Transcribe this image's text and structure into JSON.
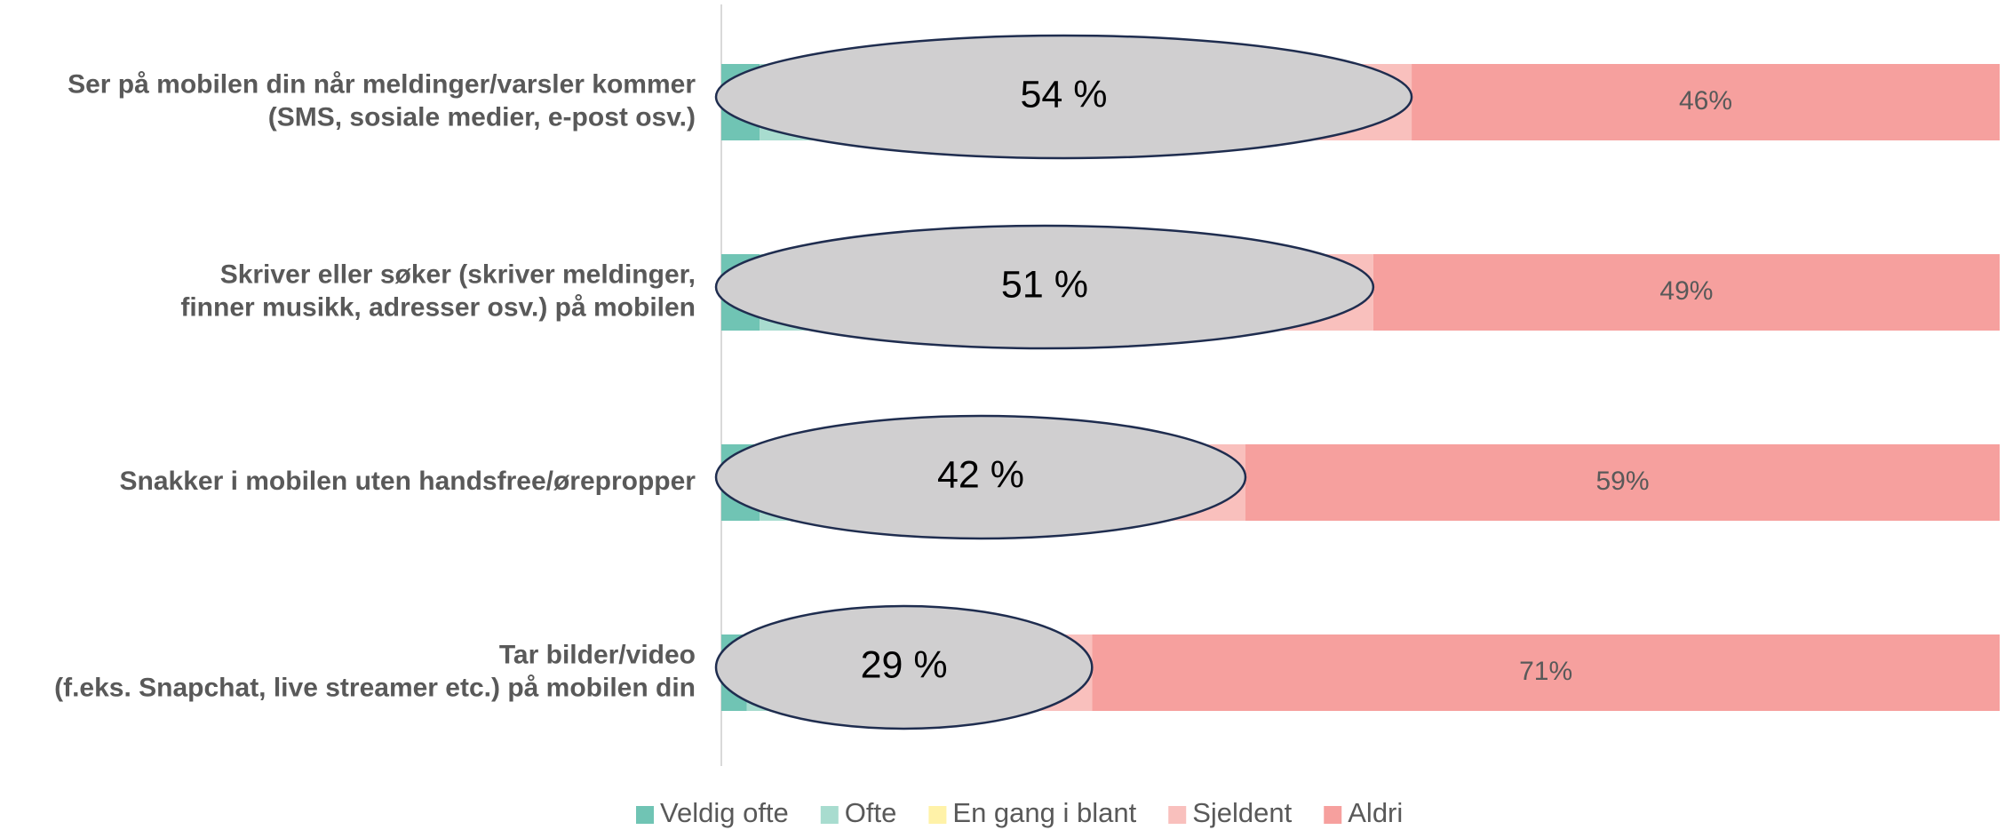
{
  "chart_data": {
    "type": "stacked-bar-horizontal",
    "categories": [
      "Ser på mobilen din når meldinger/varsler kommer\n(SMS, sosiale medier, e-post osv.)",
      "Skriver eller søker (skriver meldinger,\nfinner musikk, adresser osv.) på mobilen",
      "Snakker i mobilen uten handsfree/ørepropper",
      "Tar bilder/video\n(f.eks. Snapchat, live streamer etc.) på mobilen din"
    ],
    "series": [
      {
        "name": "Veldig ofte",
        "color": "#70c4b4",
        "values": [
          3,
          3,
          3,
          2
        ]
      },
      {
        "name": "Ofte",
        "color": "#a8dccf",
        "values": [
          10,
          8,
          5,
          4
        ]
      },
      {
        "name": "En gang i blant",
        "color": "#fff2a8",
        "values": [
          16,
          15,
          10,
          6
        ]
      },
      {
        "name": "Sjeldent",
        "color": "#f9c0bd",
        "values": [
          25,
          25,
          23,
          17
        ]
      },
      {
        "name": "Aldri",
        "color": "#f6a09e",
        "values": [
          46,
          49,
          59,
          71
        ],
        "value_labels": [
          "46%",
          "49%",
          "59%",
          "71%"
        ]
      }
    ],
    "annotations": [
      "54 %",
      "51 %",
      "42 %",
      "29 %"
    ],
    "xlim": [
      0,
      100
    ],
    "legend": "bottom"
  }
}
